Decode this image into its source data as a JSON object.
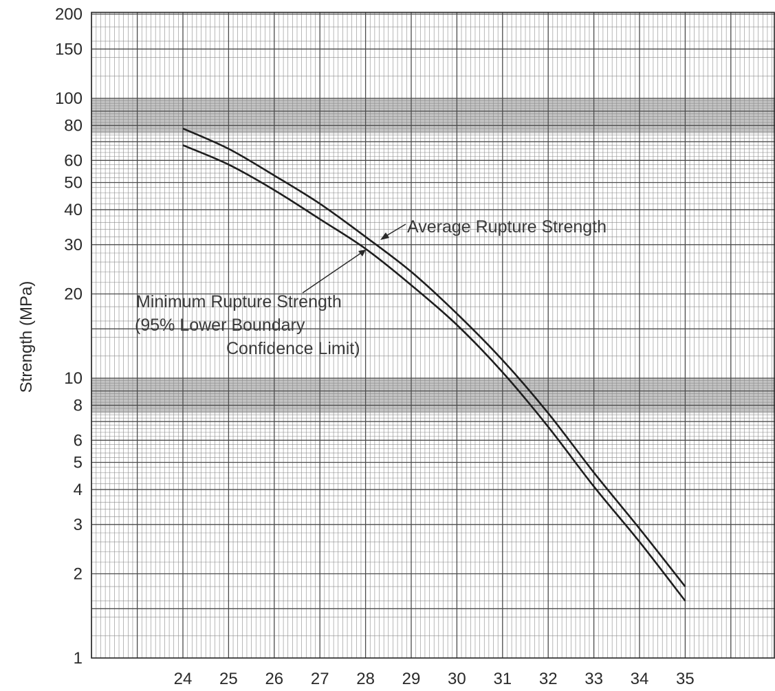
{
  "chart_data": {
    "type": "line",
    "title": "",
    "xlabel": "",
    "ylabel": "Strength (MPa)",
    "y_scale": "log",
    "ylim": [
      1,
      200
    ],
    "xlim": [
      22,
      37
    ],
    "grid": true,
    "x_ticks": [
      "24",
      "25",
      "26",
      "27",
      "28",
      "29",
      "30",
      "31",
      "32",
      "33",
      "34",
      "35"
    ],
    "y_ticks": [
      "1",
      "2",
      "3",
      "4",
      "5",
      "6",
      "8",
      "10",
      "20",
      "30",
      "40",
      "50",
      "60",
      "80",
      "100",
      "150",
      "200"
    ],
    "series": [
      {
        "name": "Average Rupture Strength",
        "x": [
          24,
          25,
          26,
          27,
          28,
          29,
          30,
          31,
          32,
          33,
          34,
          35
        ],
        "values": [
          78,
          66,
          53,
          42,
          32,
          24,
          17,
          11.6,
          7.5,
          4.6,
          2.9,
          1.8
        ]
      },
      {
        "name": "Minimum Rupture Strength (95% Lower Boundary Confidence Limit)",
        "x": [
          24,
          25,
          26,
          27,
          28,
          29,
          30,
          31,
          32,
          33,
          34,
          35
        ],
        "values": [
          68,
          58,
          47,
          37,
          29,
          21.5,
          15.5,
          10.5,
          6.7,
          4.1,
          2.6,
          1.6
        ]
      }
    ],
    "annotations": {
      "average": "Average Rupture Strength",
      "minimum_line1": "Minimum Rupture Strength",
      "minimum_line2": "(95%  Lower Boundary",
      "minimum_line3": "Confidence Limit)"
    },
    "colors": {
      "grid_major": "#4a4a4a",
      "grid_minor": "#8a8a8a",
      "shade_band": "#c4c4c4",
      "curve": "#1e1e1e"
    }
  }
}
